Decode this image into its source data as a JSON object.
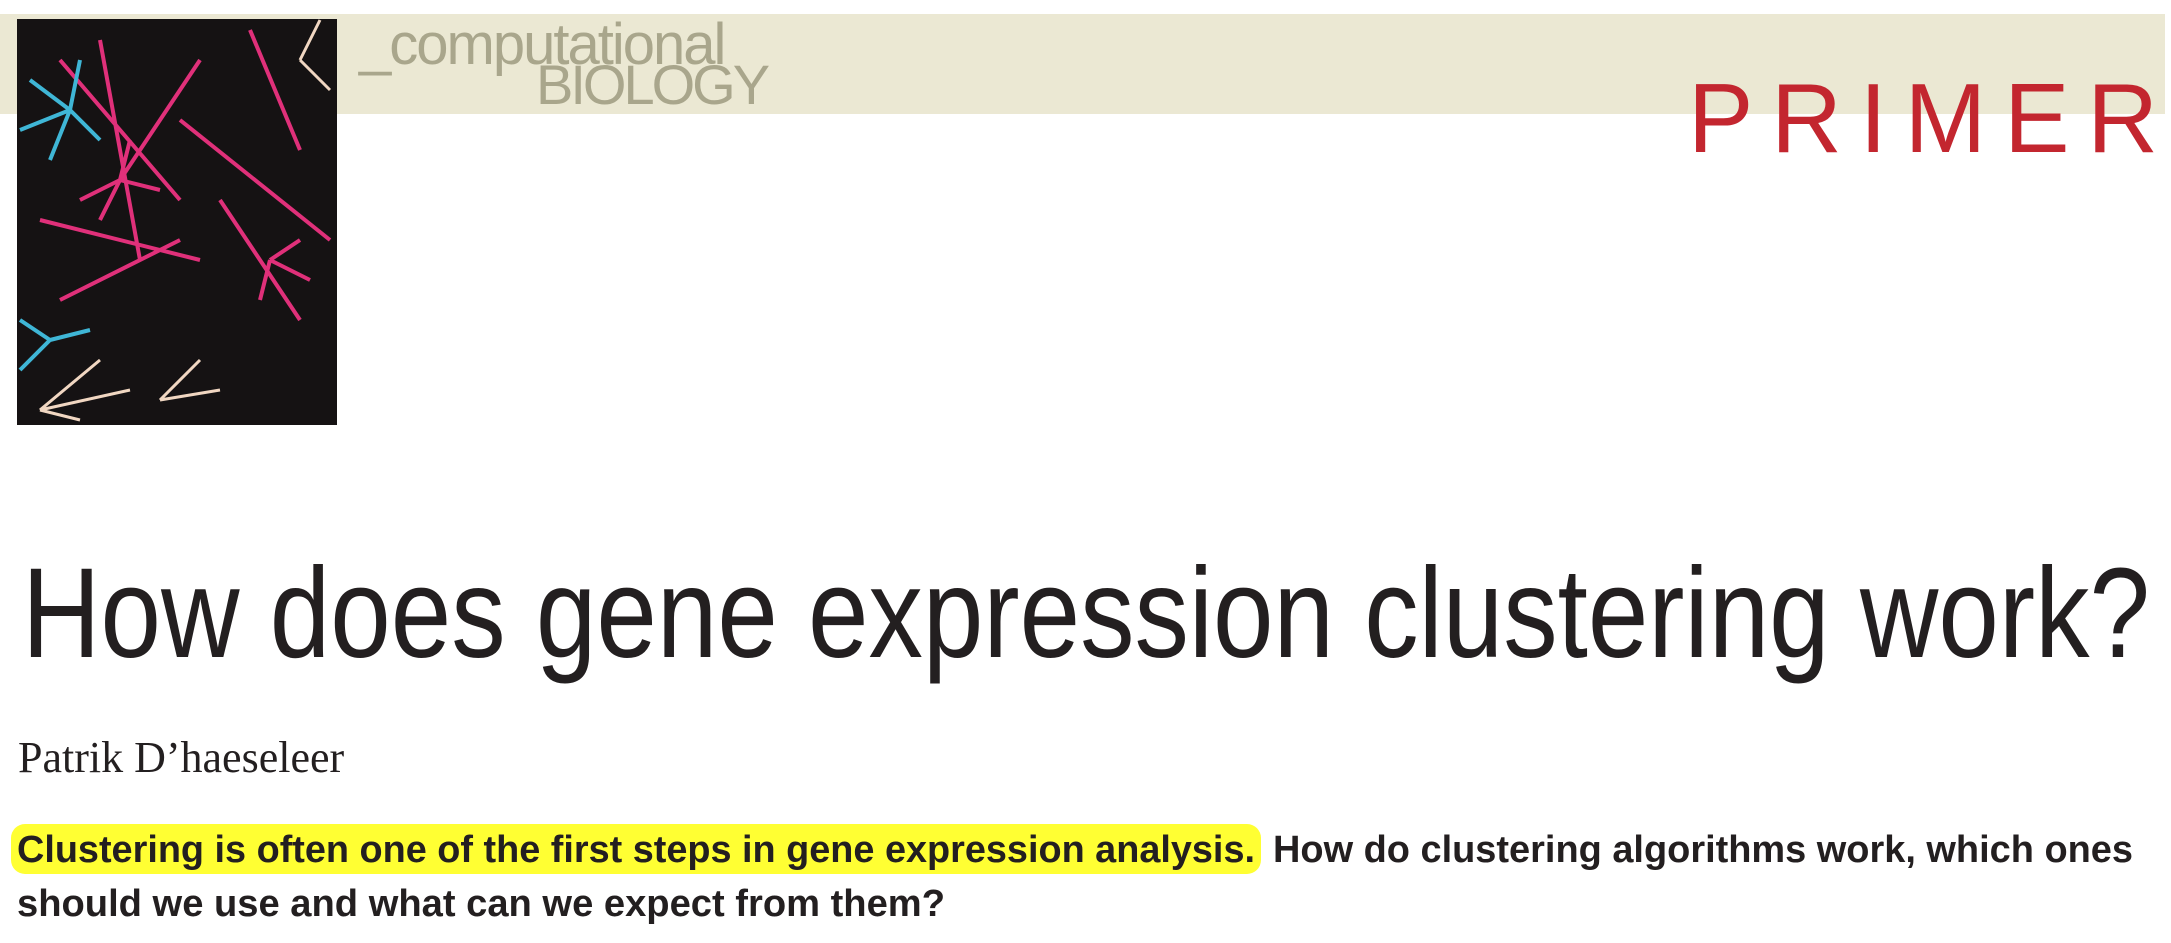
{
  "header": {
    "section_prefix": "_computational",
    "section_name": "BIOLOGY",
    "article_type": "PRIMER"
  },
  "article": {
    "title": "How does gene expression clustering work?",
    "author": "Patrik D’haeseleer",
    "abstract": {
      "highlighted": "Clustering is often one of the first steps in gene expression analysis.",
      "line1_rest": "How do clustering algorithms work, which ones",
      "line2": "should we use and what can we expect from them?"
    }
  }
}
